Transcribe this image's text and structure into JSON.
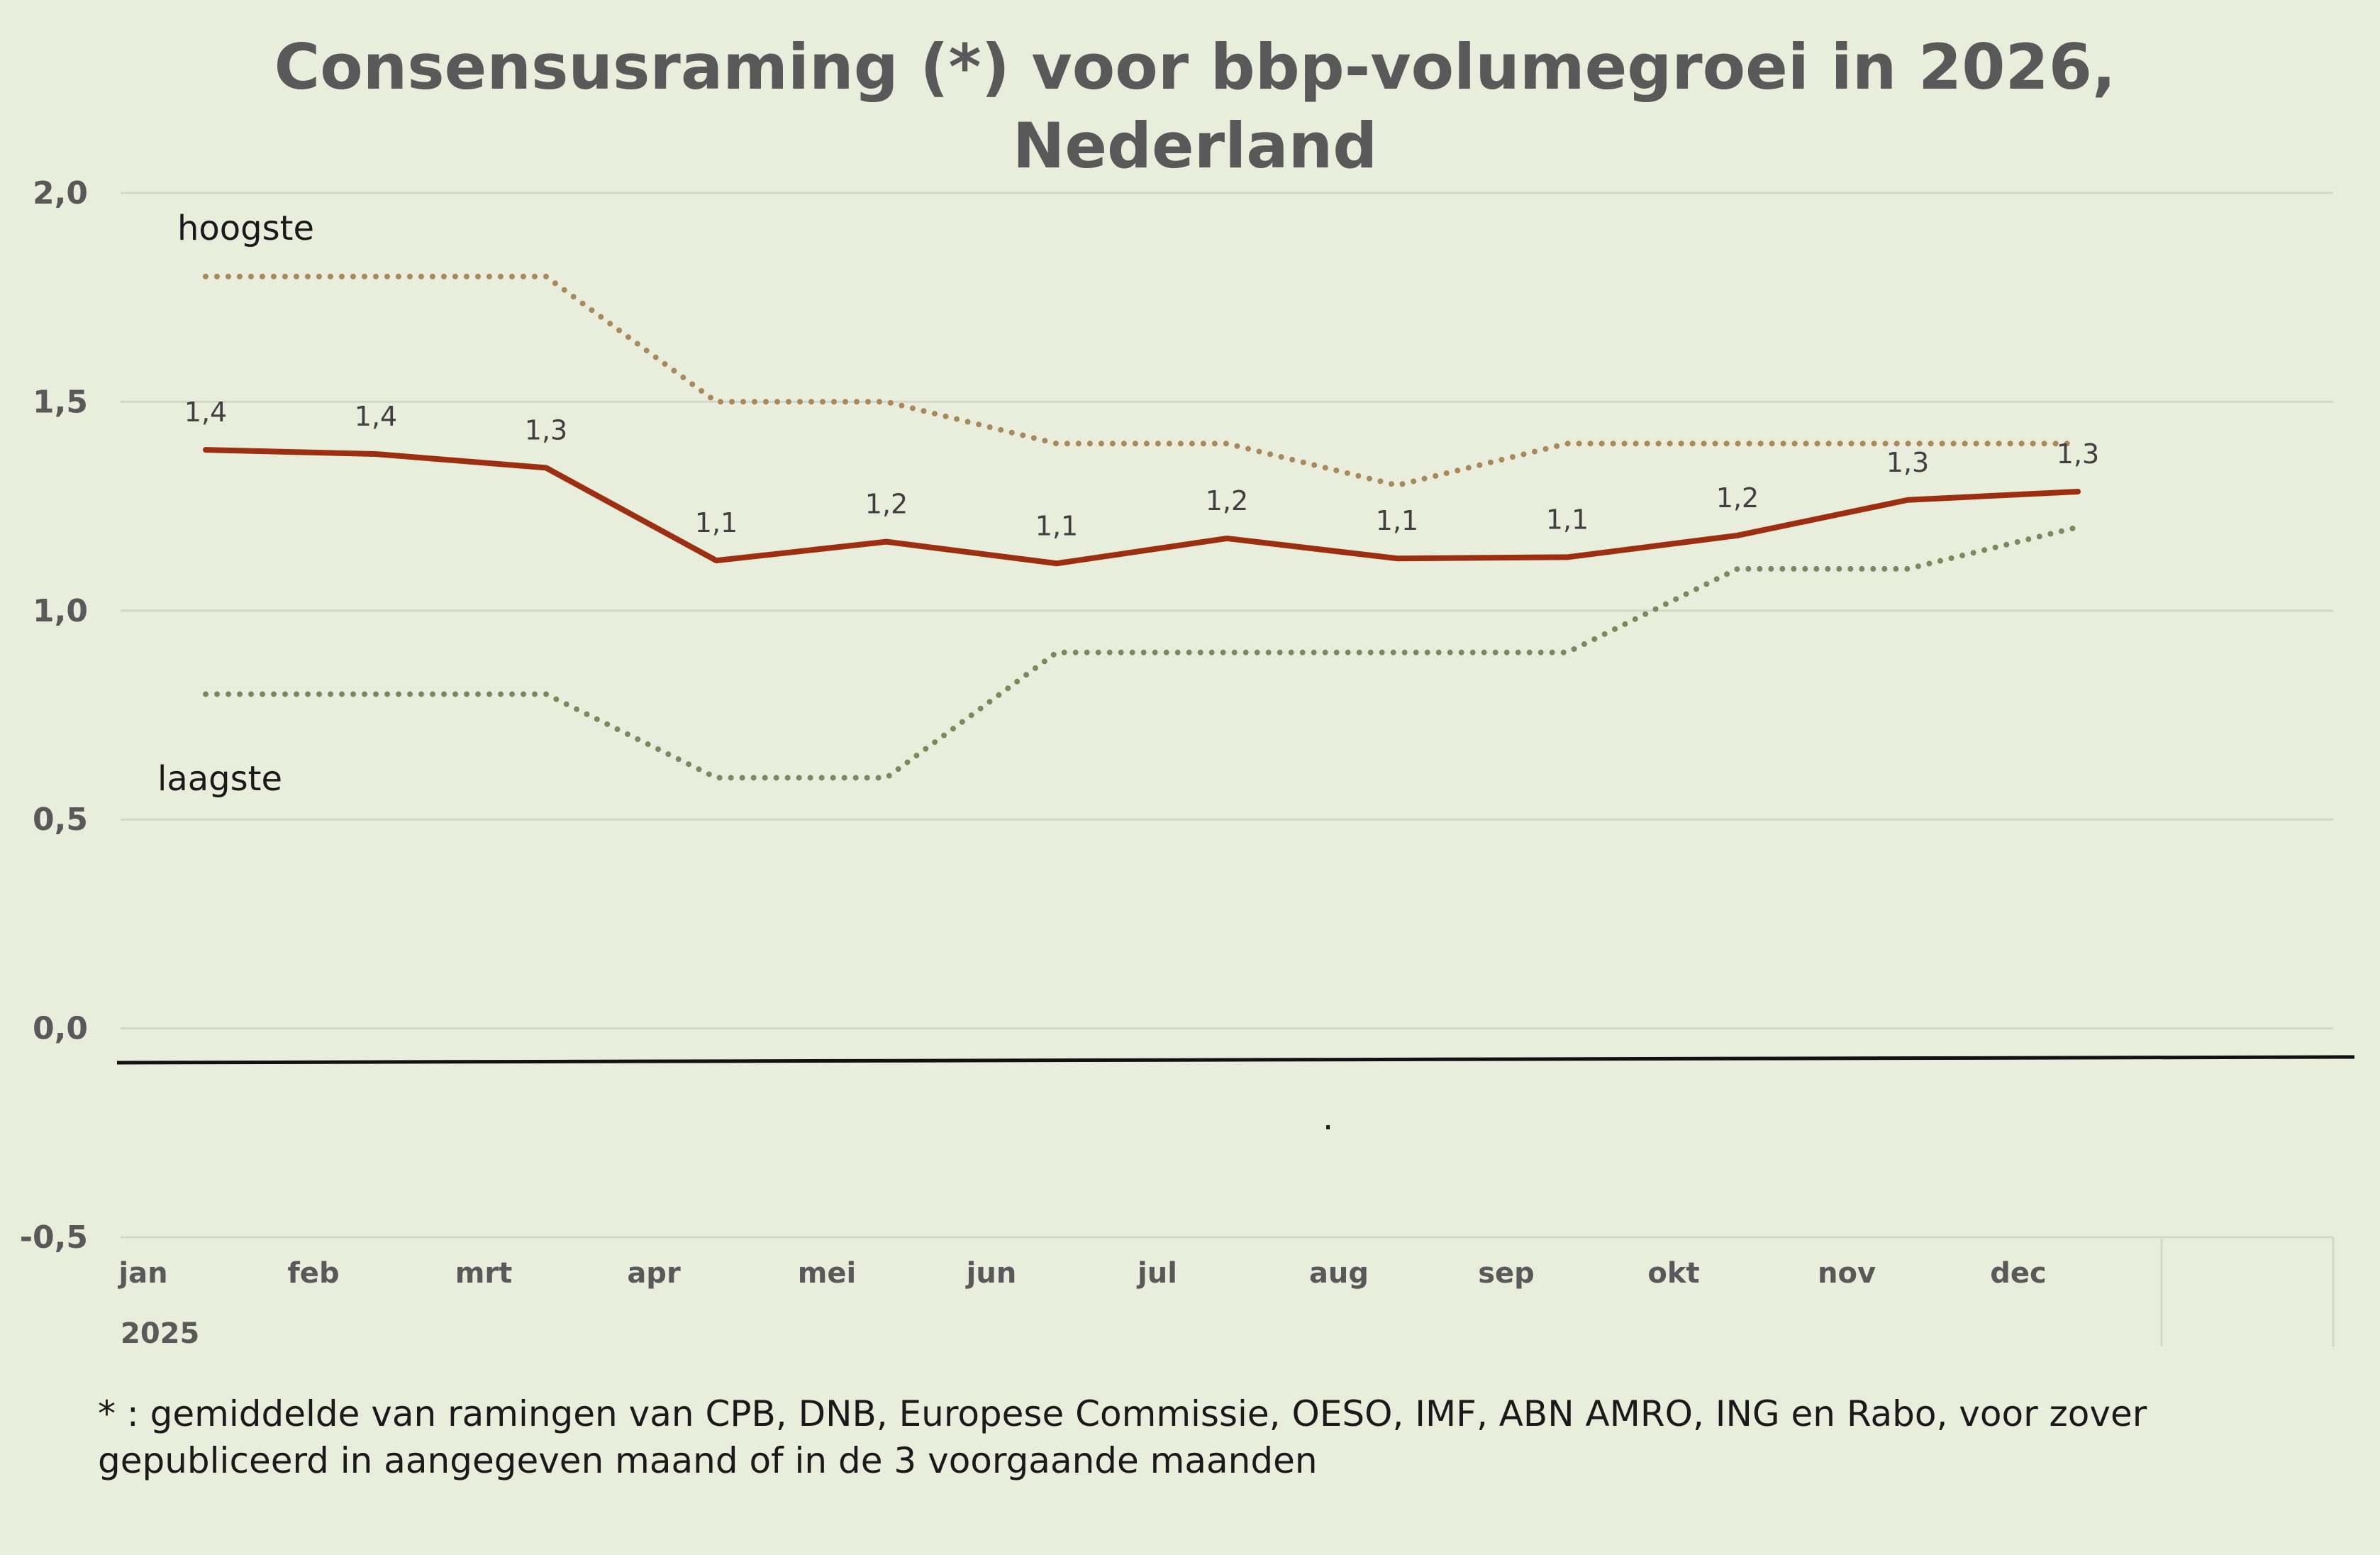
{
  "chart_data": {
    "type": "line",
    "title": "Consensusraming (*) voor bbp-volumegroei in 2026,",
    "title_line2": "Nederland",
    "categories": [
      "jan",
      "feb",
      "mrt",
      "apr",
      "mei",
      "jun",
      "jul",
      "aug",
      "sep",
      "okt",
      "nov",
      "dec"
    ],
    "category_group": "2025",
    "yticks": [
      "2,0",
      "1,5",
      "1,0",
      "0,5",
      "0,0",
      "-0,5"
    ],
    "ylim": [
      -0.5,
      2.0
    ],
    "grid": true,
    "series": [
      {
        "key": "hoogste",
        "values": [
          1.8,
          1.8,
          1.8,
          1.5,
          1.5,
          1.4,
          1.4,
          1.3,
          1.4,
          1.4,
          1.4,
          1.4
        ],
        "color": "#a68a5b",
        "style": "dotted"
      },
      {
        "key": "consensus",
        "values": [
          1.385,
          1.375,
          1.342,
          1.12,
          1.165,
          1.113,
          1.173,
          1.125,
          1.128,
          1.18,
          1.265,
          1.285
        ],
        "labels": [
          "1,4",
          "1,4",
          "1,3",
          "1,1",
          "1,2",
          "1,1",
          "1,2",
          "1,1",
          "1,1",
          "1,2",
          "1,3",
          "1,3"
        ],
        "color": "#9c2f12",
        "style": "solid"
      },
      {
        "key": "laagste",
        "values": [
          0.8,
          0.8,
          0.8,
          0.6,
          0.6,
          0.9,
          0.9,
          0.9,
          0.9,
          1.1,
          1.1,
          1.2
        ],
        "color": "#7a8a5a",
        "style": "dotted"
      }
    ],
    "annotations": {
      "hoogste": "hoogste",
      "laagste": "laagste",
      "dot": "."
    }
  },
  "footnote": {
    "line1": "* : gemiddelde van ramingen van CPB, DNB, Europese Commissie, OESO, IMF, ABN AMRO, ING en Rabo, voor zover",
    "line2": "gepubliceerd in aangegeven maand of in de 3 voorgaande maanden"
  },
  "colors": {
    "background": "#e9eddb",
    "grid": "#d4d8c6",
    "text": "#595959",
    "baseline": "#111111"
  }
}
